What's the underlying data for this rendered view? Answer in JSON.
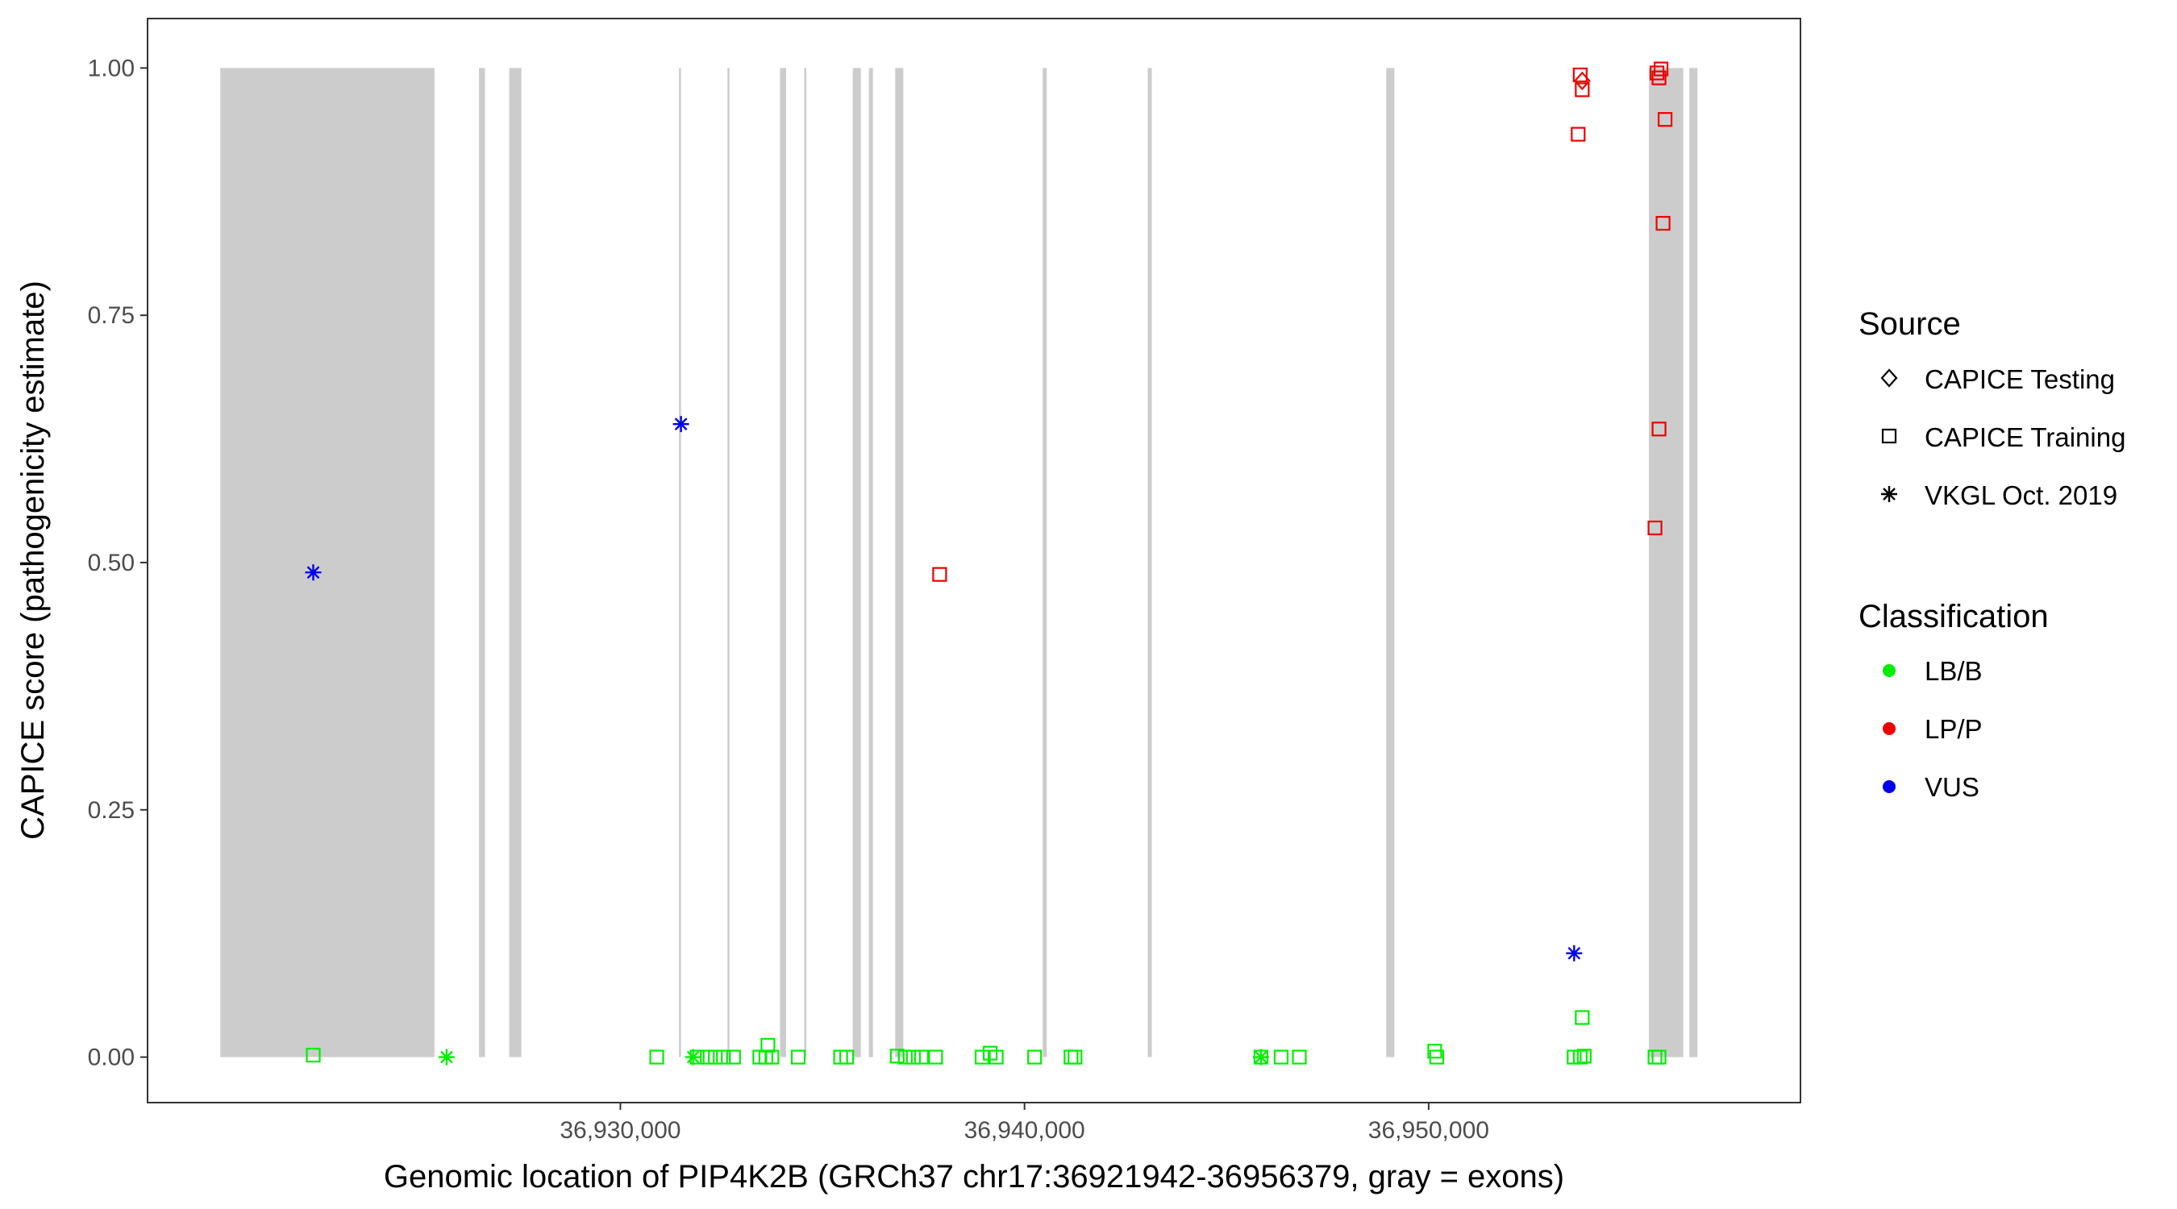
{
  "chart_data": {
    "type": "scatter",
    "title": "",
    "xlabel": "Genomic location of PIP4K2B (GRCh37 chr17:36921942-36956379, gray = exons)",
    "ylabel": "CAPICE score (pathogenicity estimate)",
    "xlim": [
      36918300,
      36959200
    ],
    "ylim": [
      -0.046,
      1.05
    ],
    "x_ticks": [
      36930000,
      36940000,
      36950000
    ],
    "x_tick_labels": [
      "36,930,000",
      "36,940,000",
      "36,950,000"
    ],
    "y_ticks": [
      0,
      0.25,
      0.5,
      0.75,
      1.0
    ],
    "y_tick_labels": [
      "0.00",
      "0.25",
      "0.50",
      "0.75",
      "1.00"
    ],
    "grid": false,
    "exon_color": "#cccccc",
    "exons": [
      [
        36920100,
        36925400
      ],
      [
        36926500,
        36926650
      ],
      [
        36927250,
        36927550
      ],
      [
        36931450,
        36931500
      ],
      [
        36932650,
        36932700
      ],
      [
        36933950,
        36934100
      ],
      [
        36934550,
        36934600
      ],
      [
        36935750,
        36935950
      ],
      [
        36936150,
        36936250
      ],
      [
        36936800,
        36937000
      ],
      [
        36940450,
        36940550
      ],
      [
        36943050,
        36943150
      ],
      [
        36948950,
        36949150
      ],
      [
        36955450,
        36956300
      ],
      [
        36956450,
        36956650
      ]
    ],
    "legend": {
      "placement": "right",
      "source": {
        "title": "Source",
        "items": [
          {
            "label": "CAPICE Testing",
            "shape": "diamond"
          },
          {
            "label": "CAPICE Training",
            "shape": "square"
          },
          {
            "label": "VKGL Oct. 2019",
            "shape": "asterisk"
          }
        ]
      },
      "classification": {
        "title": "Classification",
        "items": [
          {
            "label": "LB/B",
            "color": "#00ee00"
          },
          {
            "label": "LP/P",
            "color": "#ee0000"
          },
          {
            "label": "VUS",
            "color": "#0000ee"
          }
        ]
      }
    },
    "series": [
      {
        "shape": "asterisk",
        "color": "#0000ee",
        "classification": "VUS",
        "points": [
          [
            36922400,
            0.49
          ],
          [
            36931500,
            0.64
          ],
          [
            36953600,
            0.105
          ]
        ]
      },
      {
        "shape": "square",
        "color": "#ee0000",
        "classification": "LP/P",
        "points": [
          [
            36937900,
            0.488
          ],
          [
            36953700,
            0.933
          ],
          [
            36953800,
            0.978
          ],
          [
            36953750,
            0.993
          ],
          [
            36955600,
            0.535
          ],
          [
            36955700,
            0.635
          ],
          [
            36955800,
            0.843
          ],
          [
            36955850,
            0.948
          ],
          [
            36955650,
            0.995
          ],
          [
            36955750,
            0.999
          ],
          [
            36955700,
            0.99
          ]
        ]
      },
      {
        "shape": "diamond",
        "color": "#ee0000",
        "classification": "LP/P",
        "points": [
          [
            36953800,
            0.987
          ]
        ]
      },
      {
        "shape": "square",
        "color": "#00ee00",
        "classification": "LB/B",
        "points": [
          [
            36922400,
            0.002
          ],
          [
            36930900,
            0.0
          ],
          [
            36931900,
            0.0
          ],
          [
            36932150,
            0.0
          ],
          [
            36932350,
            0.0
          ],
          [
            36932550,
            0.0
          ],
          [
            36932800,
            0.0
          ],
          [
            36933450,
            0.0
          ],
          [
            36933600,
            0.0
          ],
          [
            36933750,
            0.0
          ],
          [
            36933650,
            0.012
          ],
          [
            36934400,
            0.0
          ],
          [
            36935450,
            0.0
          ],
          [
            36935600,
            0.0
          ],
          [
            36936850,
            0.001
          ],
          [
            36937050,
            0.0
          ],
          [
            36937250,
            0.0
          ],
          [
            36937450,
            0.0
          ],
          [
            36937800,
            0.0
          ],
          [
            36938950,
            0.0
          ],
          [
            36939150,
            0.004
          ],
          [
            36939300,
            0.0
          ],
          [
            36940250,
            0.0
          ],
          [
            36941150,
            0.0
          ],
          [
            36941250,
            0.0
          ],
          [
            36945850,
            0.0
          ],
          [
            36946350,
            0.0
          ],
          [
            36946800,
            0.0
          ],
          [
            36950150,
            0.006
          ],
          [
            36950200,
            0.0
          ],
          [
            36953600,
            0.0
          ],
          [
            36953750,
            0.0
          ],
          [
            36953850,
            0.001
          ],
          [
            36953800,
            0.04
          ],
          [
            36955600,
            0.0
          ],
          [
            36955700,
            0.0
          ]
        ]
      },
      {
        "shape": "asterisk",
        "color": "#00ee00",
        "classification": "LB/B",
        "points": [
          [
            36925700,
            0.0
          ],
          [
            36931800,
            0.0
          ],
          [
            36945850,
            0.0
          ]
        ]
      }
    ]
  }
}
